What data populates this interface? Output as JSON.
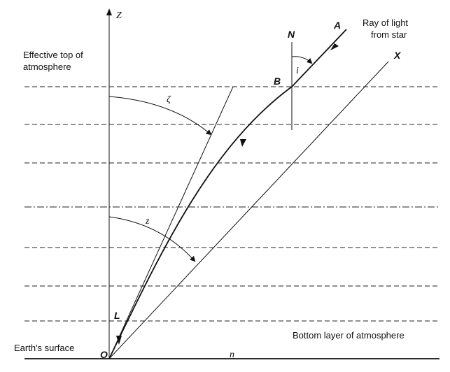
{
  "labels": {
    "z_axis": "Z",
    "normal": "N",
    "ray_end": "A",
    "star_direction": "X",
    "point_b": "B",
    "angle_i": "i",
    "zeta": "ζ",
    "z_angle": "z",
    "point_l": "L",
    "origin": "O",
    "horizon_n": "n",
    "ray_note_line1": "Ray of light",
    "ray_note_line2": "from star",
    "effective_top_line1": "Effective top of",
    "effective_top_line2": "atmosphere",
    "bottom_layer": "Bottom layer of atmosphere",
    "earths_surface": "Earth's surface"
  }
}
